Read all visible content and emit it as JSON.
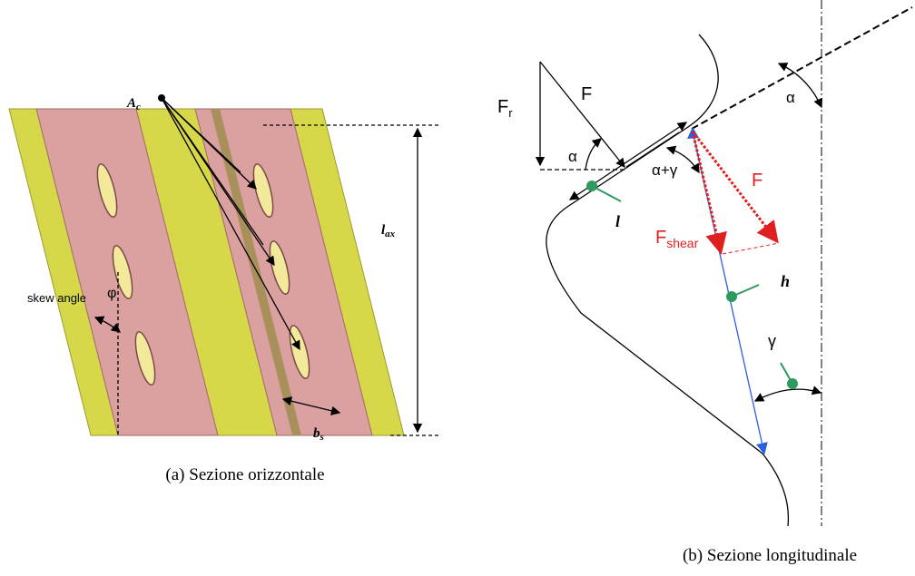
{
  "figure_a": {
    "label_ac": {
      "base": "A",
      "sub": "c"
    },
    "label_lax": {
      "base": "l",
      "sub": "ax"
    },
    "label_bs": {
      "base": "b",
      "sub": "s"
    },
    "skew_label": "skew angle",
    "skew_symbol": "φ",
    "caption": "(a) Sezione orizzontale"
  },
  "figure_b": {
    "label_fr": {
      "base": "F",
      "sub": "r"
    },
    "label_f": "F",
    "label_alpha_triangle": "α",
    "label_alpha_top": "α",
    "label_alpha_gamma": "α+γ",
    "label_f_red": "F",
    "label_fshear": {
      "base": "F",
      "sub": "shear"
    },
    "label_l": "l",
    "label_h": "h",
    "label_gamma": "γ",
    "caption": "(b) Sezione longitudinale"
  }
}
